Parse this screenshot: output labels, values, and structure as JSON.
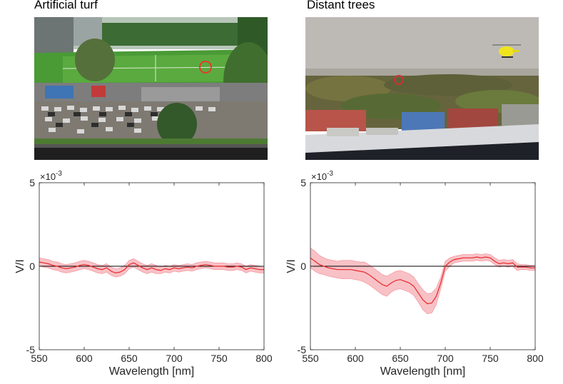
{
  "panels": [
    {
      "title": "Artificial turf",
      "photo_icon": "stadium-photo",
      "marker_color": "#e8392f"
    },
    {
      "title": "Distant trees",
      "photo_icon": "treeline-photo",
      "marker_color": "#c83434"
    }
  ],
  "chart_data": [
    {
      "type": "line",
      "title": "",
      "xlabel": "Wavelength [nm]",
      "ylabel": "V/I",
      "exponent_label": "×10-3",
      "xlim": [
        550,
        800
      ],
      "ylim": [
        -5,
        5
      ],
      "xticks": [
        "550",
        "600",
        "650",
        "700",
        "750",
        "800"
      ],
      "yticks": [
        "-5",
        "0",
        "5"
      ],
      "line_color": "#e8282a",
      "band_color": "#f7b6bc",
      "series": [
        {
          "x": [
            550,
            555,
            560,
            565,
            570,
            575,
            580,
            585,
            590,
            595,
            600,
            605,
            610,
            615,
            620,
            625,
            630,
            635,
            640,
            645,
            650,
            655,
            660,
            665,
            670,
            675,
            680,
            685,
            690,
            695,
            700,
            705,
            710,
            715,
            720,
            725,
            730,
            735,
            740,
            745,
            750,
            755,
            760,
            765,
            770,
            775,
            780,
            785,
            790,
            795,
            800
          ],
          "y": [
            0.25,
            0.2,
            0.15,
            0.05,
            0.0,
            -0.1,
            -0.15,
            -0.1,
            -0.05,
            0.05,
            0.1,
            0.05,
            -0.05,
            -0.15,
            -0.2,
            -0.1,
            -0.3,
            -0.4,
            -0.35,
            -0.2,
            0.1,
            0.2,
            0.05,
            -0.1,
            -0.2,
            -0.1,
            -0.2,
            -0.25,
            -0.15,
            -0.2,
            -0.1,
            -0.15,
            -0.1,
            -0.05,
            -0.1,
            0.0,
            0.05,
            0.1,
            0.05,
            0.0,
            0.0,
            0.0,
            -0.05,
            -0.05,
            0.0,
            -0.05,
            -0.2,
            -0.1,
            -0.15,
            -0.2,
            -0.2
          ],
          "err": [
            0.25,
            0.25,
            0.25,
            0.25,
            0.25,
            0.25,
            0.25,
            0.25,
            0.25,
            0.25,
            0.25,
            0.25,
            0.25,
            0.25,
            0.25,
            0.25,
            0.25,
            0.25,
            0.25,
            0.25,
            0.25,
            0.25,
            0.25,
            0.25,
            0.25,
            0.25,
            0.25,
            0.2,
            0.2,
            0.2,
            0.2,
            0.2,
            0.2,
            0.2,
            0.2,
            0.2,
            0.2,
            0.2,
            0.2,
            0.2,
            0.2,
            0.2,
            0.2,
            0.2,
            0.2,
            0.2,
            0.2,
            0.2,
            0.2,
            0.2,
            0.2
          ]
        }
      ]
    },
    {
      "type": "line",
      "title": "",
      "xlabel": "Wavelength [nm]",
      "ylabel": "V/I",
      "exponent_label": "×10-3",
      "xlim": [
        550,
        800
      ],
      "ylim": [
        -5,
        5
      ],
      "xticks": [
        "550",
        "600",
        "650",
        "700",
        "750",
        "800"
      ],
      "yticks": [
        "-5",
        "0",
        "5"
      ],
      "line_color": "#e8282a",
      "band_color": "#f7b6bc",
      "series": [
        {
          "x": [
            550,
            555,
            560,
            565,
            570,
            575,
            580,
            585,
            590,
            595,
            600,
            605,
            610,
            615,
            620,
            625,
            630,
            635,
            640,
            645,
            650,
            655,
            660,
            665,
            670,
            675,
            680,
            685,
            690,
            695,
            700,
            705,
            710,
            715,
            720,
            725,
            730,
            735,
            740,
            745,
            750,
            755,
            760,
            765,
            770,
            775,
            780,
            785,
            790,
            795,
            800
          ],
          "y": [
            0.5,
            0.3,
            0.1,
            0.0,
            -0.1,
            -0.15,
            -0.2,
            -0.2,
            -0.2,
            -0.2,
            -0.25,
            -0.3,
            -0.35,
            -0.5,
            -0.7,
            -0.9,
            -1.1,
            -1.2,
            -1.0,
            -0.85,
            -0.8,
            -0.9,
            -1.0,
            -1.2,
            -1.6,
            -2.0,
            -2.25,
            -2.2,
            -1.8,
            -1.0,
            0.0,
            0.25,
            0.4,
            0.45,
            0.5,
            0.5,
            0.5,
            0.55,
            0.5,
            0.55,
            0.5,
            0.3,
            0.15,
            0.2,
            0.15,
            0.2,
            -0.05,
            -0.05,
            -0.05,
            -0.1,
            -0.1
          ],
          "err": [
            0.6,
            0.6,
            0.55,
            0.5,
            0.5,
            0.5,
            0.5,
            0.55,
            0.55,
            0.55,
            0.55,
            0.55,
            0.6,
            0.6,
            0.6,
            0.6,
            0.6,
            0.6,
            0.55,
            0.55,
            0.55,
            0.55,
            0.55,
            0.55,
            0.55,
            0.6,
            0.6,
            0.6,
            0.5,
            0.35,
            0.3,
            0.25,
            0.2,
            0.2,
            0.2,
            0.2,
            0.2,
            0.2,
            0.2,
            0.2,
            0.2,
            0.2,
            0.2,
            0.2,
            0.2,
            0.2,
            0.2,
            0.15,
            0.15,
            0.15,
            0.15
          ]
        }
      ]
    }
  ]
}
